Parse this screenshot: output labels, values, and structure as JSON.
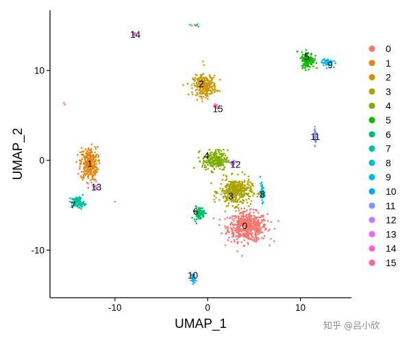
{
  "chart_data": {
    "type": "scatter",
    "title": "",
    "xlabel": "UMAP_1",
    "ylabel": "UMAP_2",
    "xlim": [
      -17,
      15.5
    ],
    "ylim": [
      -15.3,
      16.7
    ],
    "xticks": [
      -10,
      0,
      10
    ],
    "yticks": [
      -10,
      0,
      10
    ],
    "legend_position": "right",
    "clusters": [
      {
        "name": "0",
        "color": "#F8766D",
        "label_at": [
          4.0,
          -7.3
        ],
        "center": [
          4.3,
          -7.4
        ],
        "spread": [
          1.7,
          1.3
        ],
        "n": 550
      },
      {
        "name": "1",
        "color": "#E68613",
        "label_at": [
          -12.7,
          -0.4
        ],
        "center": [
          -12.8,
          -0.4
        ],
        "spread": [
          0.75,
          1.5
        ],
        "n": 300
      },
      {
        "name": "2",
        "color": "#CD9600",
        "label_at": [
          -0.7,
          8.5
        ],
        "center": [
          -0.3,
          8.3
        ],
        "spread": [
          1.0,
          0.9
        ],
        "n": 280
      },
      {
        "name": "3",
        "color": "#ABA300",
        "label_at": [
          2.5,
          -4.0
        ],
        "center": [
          3.0,
          -3.5
        ],
        "spread": [
          1.4,
          1.2
        ],
        "n": 380
      },
      {
        "name": "4",
        "color": "#7CAE00",
        "label_at": [
          -0.1,
          0.5
        ],
        "center": [
          0.8,
          0.0
        ],
        "spread": [
          1.1,
          0.9
        ],
        "n": 230
      },
      {
        "name": "5",
        "color": "#0CB702",
        "label_at": [
          10.7,
          11.5
        ],
        "center": [
          10.8,
          11.2
        ],
        "spread": [
          0.55,
          0.7
        ],
        "n": 150
      },
      {
        "name": "6",
        "color": "#00BE67",
        "label_at": [
          -1.3,
          -5.7
        ],
        "center": [
          -0.9,
          -5.9
        ],
        "spread": [
          0.45,
          0.6
        ],
        "n": 90
      },
      {
        "name": "7",
        "color": "#00C19A",
        "label_at": [
          -14.5,
          -5.0
        ],
        "center": [
          -14.0,
          -4.7
        ],
        "spread": [
          0.55,
          0.5
        ],
        "n": 110
      },
      {
        "name": "8",
        "color": "#00BFC4",
        "label_at": [
          5.9,
          -3.8
        ],
        "center": [
          5.9,
          -3.6
        ],
        "spread": [
          0.2,
          0.8
        ],
        "n": 45
      },
      {
        "name": "9",
        "color": "#00B8E7",
        "label_at": [
          13.2,
          10.6
        ],
        "center": [
          12.9,
          10.9
        ],
        "spread": [
          0.5,
          0.35
        ],
        "n": 55
      },
      {
        "name": "10",
        "color": "#00A9FF",
        "label_at": [
          -1.6,
          -12.8
        ],
        "center": [
          -1.6,
          -13.1
        ],
        "spread": [
          0.18,
          0.5
        ],
        "n": 30
      },
      {
        "name": "11",
        "color": "#8494FF",
        "label_at": [
          11.6,
          2.6
        ],
        "center": [
          11.6,
          2.7
        ],
        "spread": [
          0.12,
          0.8
        ],
        "n": 35
      },
      {
        "name": "12",
        "color": "#C77CFF",
        "label_at": [
          3.0,
          -0.5
        ],
        "center": [
          2.7,
          -0.3
        ],
        "spread": [
          0.35,
          0.25
        ],
        "n": 22
      },
      {
        "name": "13",
        "color": "#ED68ED",
        "label_at": [
          -12.0,
          -3.0
        ],
        "center": [
          -12.1,
          -2.9
        ],
        "spread": [
          0.25,
          0.25
        ],
        "n": 10
      },
      {
        "name": "14",
        "color": "#FF61CC",
        "label_at": [
          -7.8,
          14.0
        ],
        "center": [
          -8.0,
          14.1
        ],
        "spread": [
          0.2,
          0.15
        ],
        "n": 8
      },
      {
        "name": "15",
        "color": "#FF68A1",
        "label_at": [
          1.1,
          5.7
        ],
        "center": [
          0.9,
          6.0
        ],
        "spread": [
          0.18,
          0.25
        ],
        "n": 8
      }
    ],
    "extra_points": [
      {
        "cluster": "2",
        "x": -1.7,
        "y": 15.0
      },
      {
        "cluster": "2",
        "x": -1.4,
        "y": 15.1
      },
      {
        "cluster": "2",
        "x": -1.2,
        "y": 15.05
      },
      {
        "cluster": "2",
        "x": -0.5,
        "y": 11.0
      },
      {
        "cluster": "2",
        "x": -0.4,
        "y": 10.6
      },
      {
        "cluster": "9",
        "x": -1.9,
        "y": 15.1
      },
      {
        "cluster": "9",
        "x": -1.3,
        "y": 15.0
      },
      {
        "cluster": "9",
        "x": -1.0,
        "y": 14.9
      },
      {
        "cluster": "9",
        "x": -1.1,
        "y": 15.15
      },
      {
        "cluster": "13",
        "x": -15.5,
        "y": 6.4
      },
      {
        "cluster": "13",
        "x": -15.4,
        "y": 6.2
      },
      {
        "cluster": "13",
        "x": -10.0,
        "y": -4.6
      },
      {
        "cluster": "13",
        "x": -12.9,
        "y": -2.6
      },
      {
        "cluster": "14",
        "x": -8.1,
        "y": 14.3
      },
      {
        "cluster": "14",
        "x": -7.9,
        "y": 13.9
      }
    ]
  },
  "watermark": "知乎 @吕小欣"
}
